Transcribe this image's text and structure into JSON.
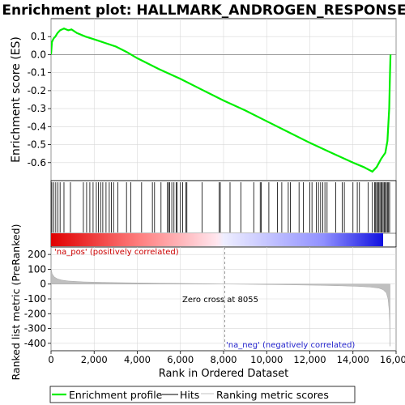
{
  "chart_data": [
    {
      "panel": "enrichment",
      "type": "line",
      "title": "Enrichment plot: HALLMARK_ANDROGEN_RESPONSE",
      "xlabel": "",
      "ylabel": "Enrichment score (ES)",
      "xlim": [
        0,
        16000
      ],
      "ylim": [
        -0.7,
        0.2
      ],
      "yticks": [
        0.1,
        0.0,
        -0.1,
        -0.2,
        -0.3,
        -0.4,
        -0.5,
        -0.6
      ],
      "ytick_labels": [
        "0.1",
        "0.0",
        "-0.1",
        "-0.2",
        "-0.3",
        "-0.4",
        "-0.5",
        "-0.6"
      ],
      "grid": true,
      "series": [
        {
          "name": "Enrichment profile",
          "color": "#00ee00",
          "points": [
            [
              0,
              0.0
            ],
            [
              40,
              0.07
            ],
            [
              120,
              0.09
            ],
            [
              200,
              0.1
            ],
            [
              300,
              0.12
            ],
            [
              420,
              0.135
            ],
            [
              600,
              0.145
            ],
            [
              800,
              0.135
            ],
            [
              950,
              0.14
            ],
            [
              1200,
              0.12
            ],
            [
              1600,
              0.1
            ],
            [
              2000,
              0.085
            ],
            [
              2500,
              0.065
            ],
            [
              3000,
              0.045
            ],
            [
              3500,
              0.015
            ],
            [
              4000,
              -0.02
            ],
            [
              5000,
              -0.08
            ],
            [
              6000,
              -0.135
            ],
            [
              7000,
              -0.195
            ],
            [
              8000,
              -0.255
            ],
            [
              9000,
              -0.31
            ],
            [
              10000,
              -0.37
            ],
            [
              11000,
              -0.43
            ],
            [
              12000,
              -0.49
            ],
            [
              13000,
              -0.545
            ],
            [
              14000,
              -0.6
            ],
            [
              14500,
              -0.625
            ],
            [
              14900,
              -0.65
            ],
            [
              15100,
              -0.625
            ],
            [
              15300,
              -0.58
            ],
            [
              15500,
              -0.545
            ],
            [
              15600,
              -0.48
            ],
            [
              15680,
              -0.3
            ],
            [
              15720,
              -0.1
            ],
            [
              15740,
              0.0
            ]
          ]
        }
      ]
    },
    {
      "panel": "hits",
      "type": "scatter",
      "series": [
        {
          "name": "Hits",
          "color": "#000000",
          "x": [
            40,
            130,
            220,
            320,
            420,
            600,
            900,
            1500,
            1650,
            1800,
            1950,
            2100,
            2200,
            2300,
            2400,
            2550,
            2700,
            2800,
            2900,
            3100,
            3500,
            3700,
            4200,
            4700,
            4800,
            5100,
            5400,
            5450,
            5500,
            5600,
            5700,
            5800,
            5850,
            6000,
            6100,
            6250,
            6300,
            7000,
            7800,
            7850,
            8300,
            8800,
            9400,
            9700,
            9750,
            10100,
            10500,
            10700,
            11000,
            11100,
            11500,
            11700,
            12000,
            12100,
            12300,
            12400,
            12500,
            12600,
            12700,
            12800,
            13200,
            13500,
            13600,
            14000,
            14200,
            14300,
            14700,
            14900,
            15000,
            15050,
            15100,
            15150,
            15200,
            15250,
            15300,
            15350,
            15400,
            15450,
            15500,
            15550,
            15600,
            15650,
            15700
          ]
        }
      ]
    },
    {
      "panel": "ranked_list",
      "type": "area",
      "xlabel": "Rank in Ordered Dataset",
      "ylabel": "Ranked list metric (PreRanked)",
      "xlim": [
        0,
        16000
      ],
      "ylim": [
        -450,
        250
      ],
      "yticks": [
        200,
        100,
        0,
        -100,
        -200,
        -300,
        -400
      ],
      "ytick_labels": [
        "200",
        "100",
        "0",
        "-100",
        "-200",
        "-300",
        "-400"
      ],
      "xticks": [
        0,
        2000,
        4000,
        6000,
        8000,
        10000,
        12000,
        14000,
        16000
      ],
      "xtick_labels": [
        "0",
        "2,000",
        "4,000",
        "6,000",
        "8,000",
        "10,000",
        "12,000",
        "14,000",
        "16,000"
      ],
      "grid": true,
      "series": [
        {
          "name": "Ranking metric scores",
          "color": "#c0c0c0",
          "points": [
            [
              0,
              110
            ],
            [
              50,
              70
            ],
            [
              150,
              48
            ],
            [
              300,
              35
            ],
            [
              500,
              27
            ],
            [
              800,
              21
            ],
            [
              1500,
              15
            ],
            [
              3000,
              10
            ],
            [
              5000,
              6
            ],
            [
              7000,
              3
            ],
            [
              8055,
              0
            ],
            [
              9500,
              -2
            ],
            [
              11000,
              -5
            ],
            [
              12500,
              -8
            ],
            [
              13500,
              -12
            ],
            [
              14200,
              -15
            ],
            [
              14800,
              -20
            ],
            [
              15200,
              -27
            ],
            [
              15400,
              -38
            ],
            [
              15550,
              -60
            ],
            [
              15630,
              -100
            ],
            [
              15680,
              -180
            ],
            [
              15700,
              -250
            ],
            [
              15720,
              -420
            ]
          ]
        }
      ],
      "annotations": [
        "Zero cross at 8055",
        "'na_pos' (positively correlated)",
        "'na_neg' (negatively correlated)"
      ]
    }
  ],
  "legend": {
    "items": [
      {
        "label": "Enrichment profile",
        "color": "#00ee00"
      },
      {
        "label": "Hits",
        "color": "#000000"
      },
      {
        "label": "Ranking metric scores",
        "color": "#c0c0c0"
      }
    ]
  },
  "texts": {
    "title": "Enrichment plot: HALLMARK_ANDROGEN_RESPONSE",
    "es_ylabel": "Enrichment score (ES)",
    "metric_ylabel": "Ranked list metric (PreRanked)",
    "xlabel": "Rank in Ordered Dataset",
    "zero_cross": "Zero cross at 8055",
    "na_pos": "'na_pos' (positively correlated)",
    "na_neg": "'na_neg' (negatively correlated)"
  },
  "colors": {
    "es_line": "#00ee00",
    "pos_color": "#ff0000",
    "neg_color": "#0000ff",
    "grid": "#d8d8d8",
    "zero_line": "#808080",
    "metric_fill": "#c0c0c0"
  },
  "zero_cross_rank": 8055,
  "rank_max": 15720
}
